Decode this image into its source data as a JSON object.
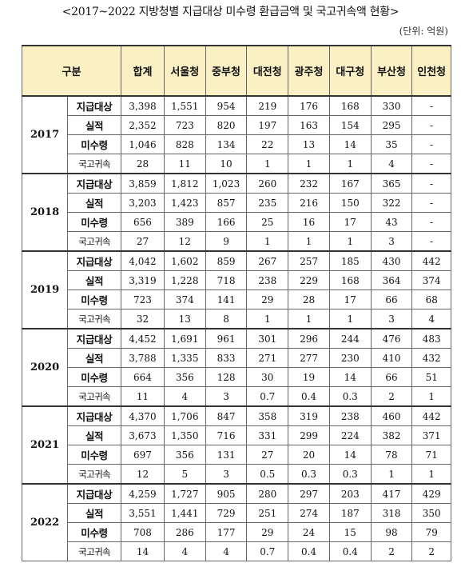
{
  "document": {
    "title": "<2017~2022 지방청별 지급대상 미수령 환급금액 및 국고귀속액 현황>",
    "unit": "(단위: 억원)"
  },
  "table": {
    "header": {
      "category": "구분",
      "columns": [
        "합계",
        "서울청",
        "중부청",
        "대전청",
        "광주청",
        "대구청",
        "부산청",
        "인천청"
      ]
    },
    "years": [
      {
        "year": "2017",
        "rows": [
          {
            "label": "지급대상",
            "values": [
              "3,398",
              "1,551",
              "954",
              "219",
              "176",
              "168",
              "330",
              "-"
            ]
          },
          {
            "label": "실적",
            "values": [
              "2,352",
              "723",
              "820",
              "197",
              "163",
              "154",
              "295",
              "-"
            ]
          },
          {
            "label": "미수령",
            "values": [
              "1,046",
              "828",
              "134",
              "22",
              "13",
              "14",
              "35",
              "-"
            ]
          },
          {
            "label": "국고귀속",
            "values": [
              "28",
              "11",
              "10",
              "1",
              "1",
              "1",
              "4",
              "-"
            ]
          }
        ]
      },
      {
        "year": "2018",
        "rows": [
          {
            "label": "지급대상",
            "values": [
              "3,859",
              "1,812",
              "1,023",
              "260",
              "232",
              "167",
              "365",
              "-"
            ]
          },
          {
            "label": "실적",
            "values": [
              "3,203",
              "1,423",
              "857",
              "235",
              "216",
              "150",
              "322",
              "-"
            ]
          },
          {
            "label": "미수령",
            "values": [
              "656",
              "389",
              "166",
              "25",
              "16",
              "17",
              "43",
              "-"
            ]
          },
          {
            "label": "국고귀속",
            "values": [
              "27",
              "12",
              "9",
              "1",
              "1",
              "1",
              "3",
              "-"
            ]
          }
        ]
      },
      {
        "year": "2019",
        "rows": [
          {
            "label": "지급대상",
            "values": [
              "4,042",
              "1,602",
              "859",
              "267",
              "257",
              "185",
              "430",
              "442"
            ]
          },
          {
            "label": "실적",
            "values": [
              "3,319",
              "1,228",
              "718",
              "238",
              "229",
              "168",
              "364",
              "374"
            ]
          },
          {
            "label": "미수령",
            "values": [
              "723",
              "374",
              "141",
              "29",
              "28",
              "17",
              "66",
              "68"
            ]
          },
          {
            "label": "국고귀속",
            "values": [
              "32",
              "13",
              "8",
              "1",
              "1",
              "1",
              "3",
              "4"
            ]
          }
        ]
      },
      {
        "year": "2020",
        "rows": [
          {
            "label": "지급대상",
            "values": [
              "4,452",
              "1,691",
              "961",
              "301",
              "296",
              "244",
              "476",
              "483"
            ]
          },
          {
            "label": "실적",
            "values": [
              "3,788",
              "1,335",
              "833",
              "271",
              "277",
              "230",
              "410",
              "432"
            ]
          },
          {
            "label": "미수령",
            "values": [
              "664",
              "356",
              "128",
              "30",
              "19",
              "14",
              "66",
              "51"
            ]
          },
          {
            "label": "국고귀속",
            "values": [
              "11",
              "4",
              "3",
              "0.7",
              "0.4",
              "0.3",
              "2",
              "1"
            ]
          }
        ]
      },
      {
        "year": "2021",
        "rows": [
          {
            "label": "지급대상",
            "values": [
              "4,370",
              "1,706",
              "847",
              "358",
              "319",
              "238",
              "460",
              "442"
            ]
          },
          {
            "label": "실적",
            "values": [
              "3,673",
              "1,350",
              "716",
              "331",
              "299",
              "224",
              "382",
              "371"
            ]
          },
          {
            "label": "미수령",
            "values": [
              "697",
              "356",
              "131",
              "27",
              "20",
              "14",
              "78",
              "71"
            ]
          },
          {
            "label": "국고귀속",
            "values": [
              "12",
              "5",
              "3",
              "0.5",
              "0.3",
              "0.3",
              "1",
              "1"
            ]
          }
        ]
      },
      {
        "year": "2022",
        "rows": [
          {
            "label": "지급대상",
            "values": [
              "4,259",
              "1,727",
              "905",
              "280",
              "297",
              "203",
              "417",
              "429"
            ]
          },
          {
            "label": "실적",
            "values": [
              "3,551",
              "1,441",
              "729",
              "251",
              "274",
              "187",
              "318",
              "350"
            ]
          },
          {
            "label": "미수령",
            "values": [
              "708",
              "286",
              "177",
              "29",
              "24",
              "15",
              "98",
              "79"
            ]
          },
          {
            "label": "국고귀속",
            "values": [
              "14",
              "4",
              "4",
              "0.7",
              "0.4",
              "0.4",
              "2",
              "2"
            ]
          }
        ]
      }
    ]
  }
}
